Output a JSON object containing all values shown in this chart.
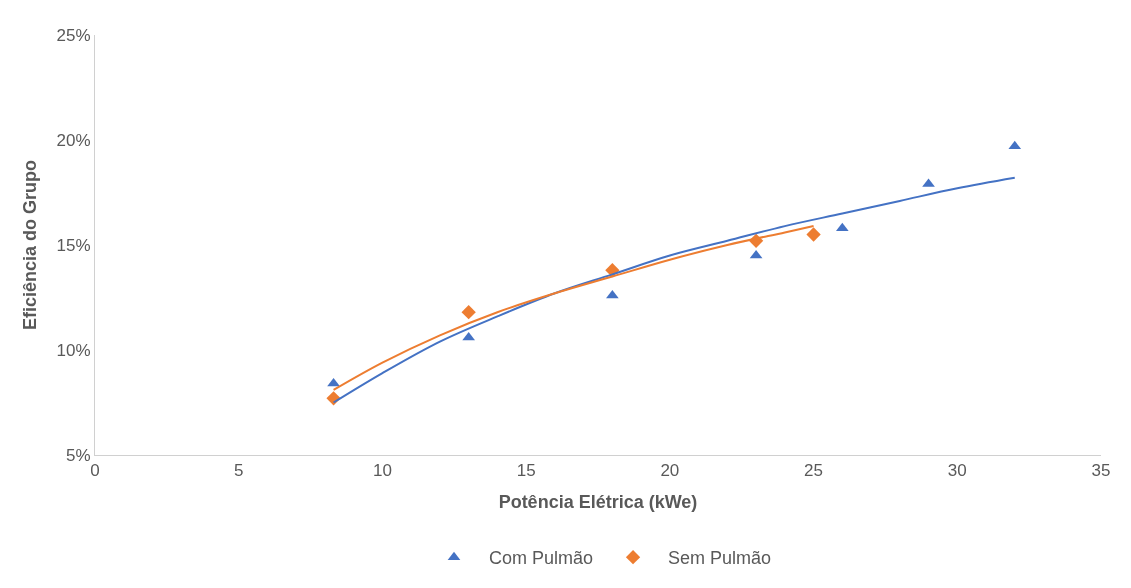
{
  "chart_data": {
    "type": "scatter",
    "xlabel": "Potência Elétrica (kWe)",
    "ylabel": "Eficiência do Grupo",
    "xlim": [
      0,
      35
    ],
    "xticks": [
      0,
      5,
      10,
      15,
      20,
      25,
      30,
      35
    ],
    "ylim": [
      5,
      25
    ],
    "yticks": [
      {
        "value": 5,
        "label": "5%"
      },
      {
        "value": 10,
        "label": "10%"
      },
      {
        "value": 15,
        "label": "15%"
      },
      {
        "value": 20,
        "label": "20%"
      },
      {
        "value": 25,
        "label": "25%"
      }
    ],
    "legend": "bottom",
    "series": [
      {
        "name": "Com Pulmão",
        "color": "#4472c4",
        "marker": "triangle",
        "x": [
          8.3,
          13,
          18,
          23,
          26,
          29,
          32
        ],
        "values": [
          8.4,
          10.6,
          12.6,
          14.5,
          15.8,
          17.9,
          19.7
        ]
      },
      {
        "name": "Sem Pulmão",
        "color": "#ed7d31",
        "marker": "diamond",
        "x": [
          8.3,
          13,
          18,
          23,
          25
        ],
        "values": [
          7.7,
          11.8,
          13.8,
          15.2,
          15.5
        ]
      },
      {
        "type": "line",
        "color": "#4472c4",
        "x": [
          8.3,
          10,
          12,
          14,
          16,
          18,
          20,
          22,
          24,
          26,
          28,
          30,
          32
        ],
        "values": [
          7.5,
          8.9,
          10.4,
          11.6,
          12.7,
          13.6,
          14.5,
          15.2,
          15.9,
          16.5,
          17.1,
          17.7,
          18.2
        ]
      },
      {
        "type": "line",
        "color": "#ed7d31",
        "x": [
          8.3,
          10,
          12,
          14,
          16,
          18,
          20,
          22,
          24,
          25
        ],
        "values": [
          8.1,
          9.4,
          10.7,
          11.8,
          12.7,
          13.5,
          14.3,
          15.0,
          15.6,
          15.9
        ]
      }
    ]
  }
}
